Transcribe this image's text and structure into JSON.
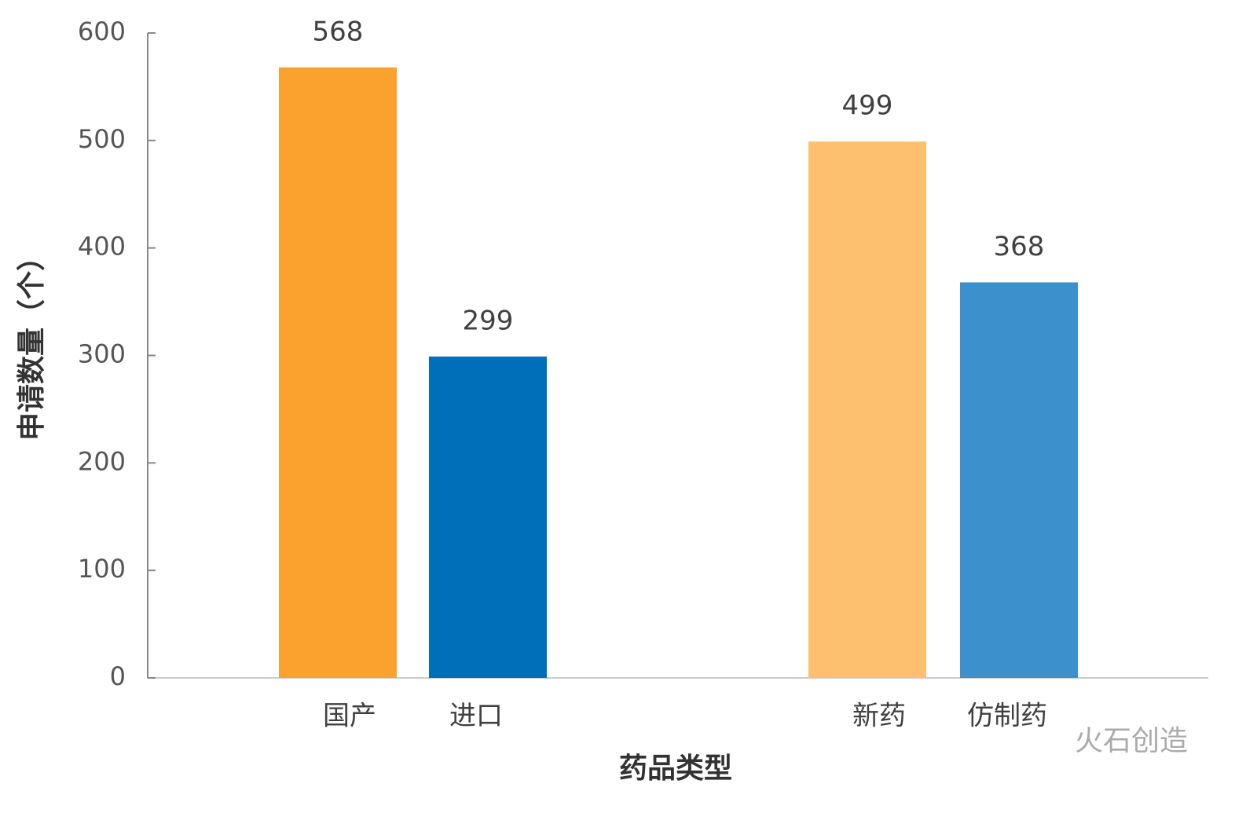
{
  "chart_data": {
    "type": "bar",
    "x_label": "药品类型",
    "y_label": "申请数量（个）",
    "categories": [
      "国产",
      "进口",
      "新药",
      "仿制药"
    ],
    "values": [
      568,
      299,
      499,
      368
    ],
    "colors": [
      "#fba22e",
      "#006fba",
      "#fdc06e",
      "#3c90cb"
    ],
    "ylim": [
      0,
      600
    ],
    "yticks": [
      0,
      100,
      200,
      300,
      400,
      500,
      600
    ],
    "grid": false,
    "watermark": "火石创造"
  }
}
